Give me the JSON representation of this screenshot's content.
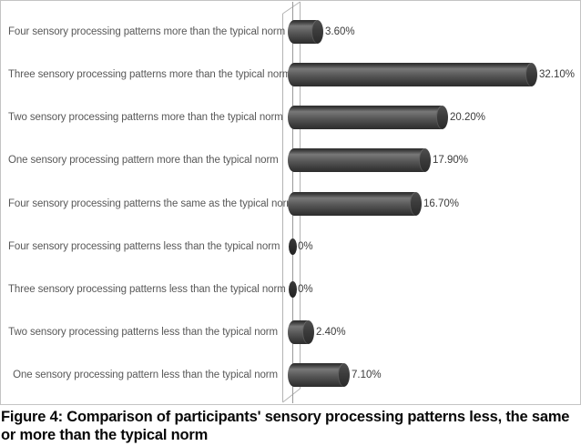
{
  "chart_data": {
    "type": "bar",
    "orientation": "horizontal",
    "style": "3d-cylinder",
    "title": "",
    "xlabel": "",
    "ylabel": "",
    "xlim": [
      0,
      35
    ],
    "grid": false,
    "legend": false,
    "categories": [
      "Four sensory processing patterns more than the typical norm",
      "Three sensory processing patterns more than the typical norm",
      "Two sensory processing patterns more than the typical norm",
      "One sensory processing pattern more than the typical norm",
      "Four sensory processing patterns the same as the typical norm",
      "Four sensory processing patterns less than the typical norm",
      "Three sensory processing patterns less than the typical norm",
      "Two sensory processing patterns less than the typical norm",
      "One sensory processing pattern less than the typical norm"
    ],
    "values": [
      3.6,
      32.1,
      20.2,
      17.9,
      16.7,
      0,
      0,
      2.4,
      7.1
    ],
    "value_labels": [
      "3.60%",
      "32.10%",
      "20.20%",
      "17.90%",
      "16.70%",
      "0%",
      "0%",
      "2.40%",
      "7.10%"
    ],
    "bar_color": "#4a4a4a",
    "wall_line_color": "#b3b3b3",
    "axis_line_color": "#999999",
    "label_color": "#585858",
    "value_label_color": "#3a3a3a"
  },
  "caption": {
    "text": "Figure 4: Comparison of participants' sensory processing patterns less, the same or more than the typical norm"
  }
}
